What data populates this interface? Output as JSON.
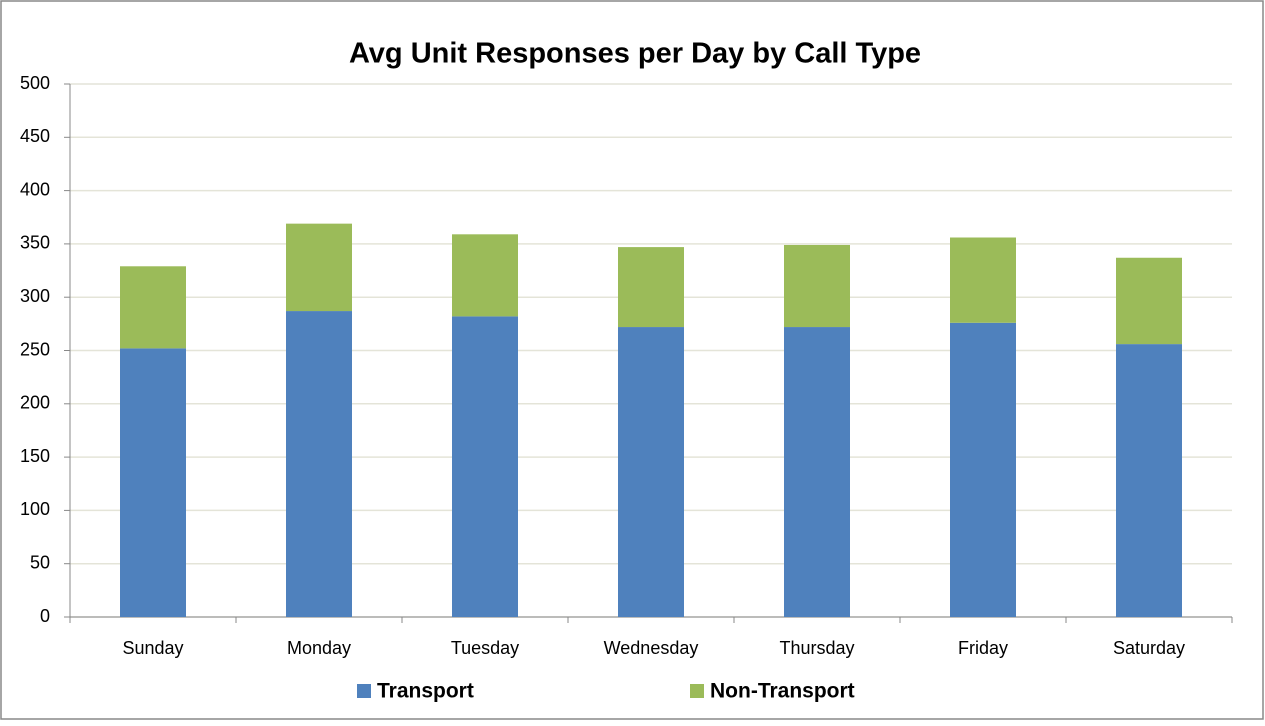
{
  "chart_data": {
    "type": "stacked_bar",
    "title": "Avg Unit Responses per Day by Call Type",
    "categories": [
      "Sunday",
      "Monday",
      "Tuesday",
      "Wednesday",
      "Thursday",
      "Friday",
      "Saturday"
    ],
    "series": [
      {
        "name": "Transport",
        "color": "#4f81bd",
        "values": [
          252,
          287,
          282,
          272,
          272,
          276,
          256
        ]
      },
      {
        "name": "Non-Transport",
        "color": "#9bbb59",
        "values": [
          77,
          82,
          77,
          75,
          77,
          80,
          81
        ]
      }
    ],
    "ylim": [
      0,
      500
    ],
    "yticks": [
      0,
      50,
      100,
      150,
      200,
      250,
      300,
      350,
      400,
      450,
      500
    ],
    "grid": true,
    "legend": "bottom"
  }
}
